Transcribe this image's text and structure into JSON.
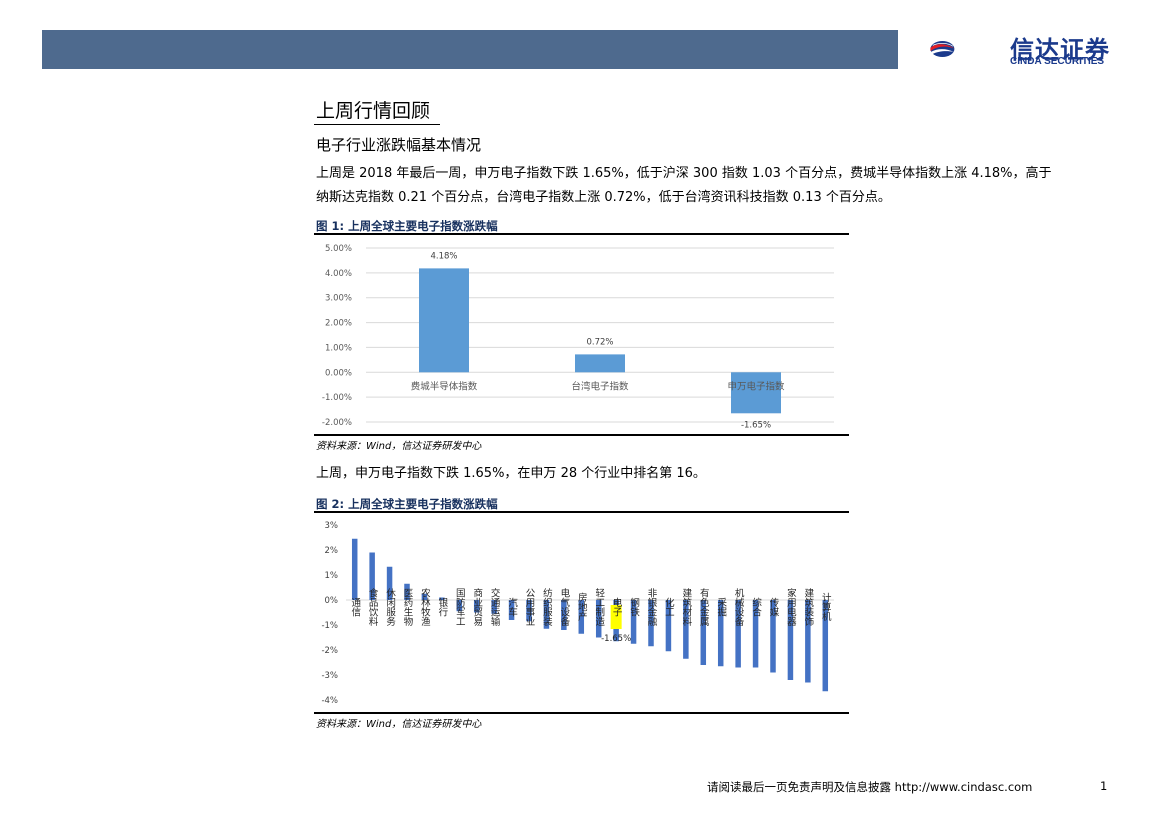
{
  "header": {
    "logo_cn": "信达证券",
    "logo_en": "CINDA SECURITIES",
    "accent": "#4e6a8e"
  },
  "section_title": "上周行情回顾",
  "subtitle": "电子行业涨跌幅基本情况",
  "para1": [
    "上周是 2018 年最后一周，申万电子指数下跌 1.65%，低于沪深 300 指数 1.03 个百分点，费城半导体指数上涨 4.18%，高于",
    "纳斯达克指数 0.21 个百分点，台湾电子指数上涨 0.72%，低于台湾资讯科技指数 0.13 个百分点。"
  ],
  "para2": "上周，申万电子指数下跌 1.65%，在申万 28 个行业中排名第 16。",
  "source_text": "资料来源：Wind，信达证券研发中心",
  "footer": {
    "text": "请阅读最后一页免责声明及信息披露 http://www.cindasc.com",
    "page": "1"
  },
  "chart_data": [
    {
      "type": "bar",
      "title": "图 1: 上周全球主要电子指数涨跌幅",
      "categories": [
        "费城半导体指数",
        "台湾电子指数",
        "申万电子指数"
      ],
      "values": [
        4.18,
        0.72,
        -1.65
      ],
      "value_labels": [
        "4.18%",
        "0.72%",
        "-1.65%"
      ],
      "ylim": [
        -2,
        5
      ],
      "yticks": [
        "-2.00%",
        "-1.00%",
        "0.00%",
        "1.00%",
        "2.00%",
        "3.00%",
        "4.00%",
        "5.00%"
      ],
      "grid": true,
      "bar_color": "#5b9bd5"
    },
    {
      "type": "bar",
      "title": "图 2: 上周全球主要电子指数涨跌幅",
      "categories": [
        "通信",
        "食品饮料",
        "休闲服务",
        "医药生物",
        "农林牧渔",
        "银行",
        "国防军工",
        "商业贸易",
        "交通运输",
        "汽车",
        "公用事业",
        "纺织服装",
        "电气设备",
        "房地产",
        "轻工制造",
        "电子",
        "钢铁",
        "非银金融",
        "化工",
        "建筑材料",
        "有色金属",
        "采掘",
        "机械设备",
        "综合",
        "传媒",
        "家用电器",
        "建筑装饰",
        "计算机"
      ],
      "values": [
        2.45,
        1.9,
        1.33,
        0.65,
        0.25,
        0.1,
        -0.45,
        -0.5,
        -0.55,
        -0.8,
        -0.85,
        -1.15,
        -1.2,
        -1.35,
        -1.5,
        -1.65,
        -1.75,
        -1.85,
        -2.05,
        -2.35,
        -2.6,
        -2.65,
        -2.7,
        -2.7,
        -2.9,
        -3.2,
        -3.3,
        -3.65
      ],
      "highlight_category": "电子",
      "highlight_label": "-1.65%",
      "ylim": [
        -4,
        3
      ],
      "yticks": [
        "-4%",
        "-3%",
        "-2%",
        "-1%",
        "0%",
        "1%",
        "2%",
        "3%"
      ],
      "grid": false,
      "bar_color": "#4472c4",
      "highlight_color": "#ffff00"
    }
  ]
}
